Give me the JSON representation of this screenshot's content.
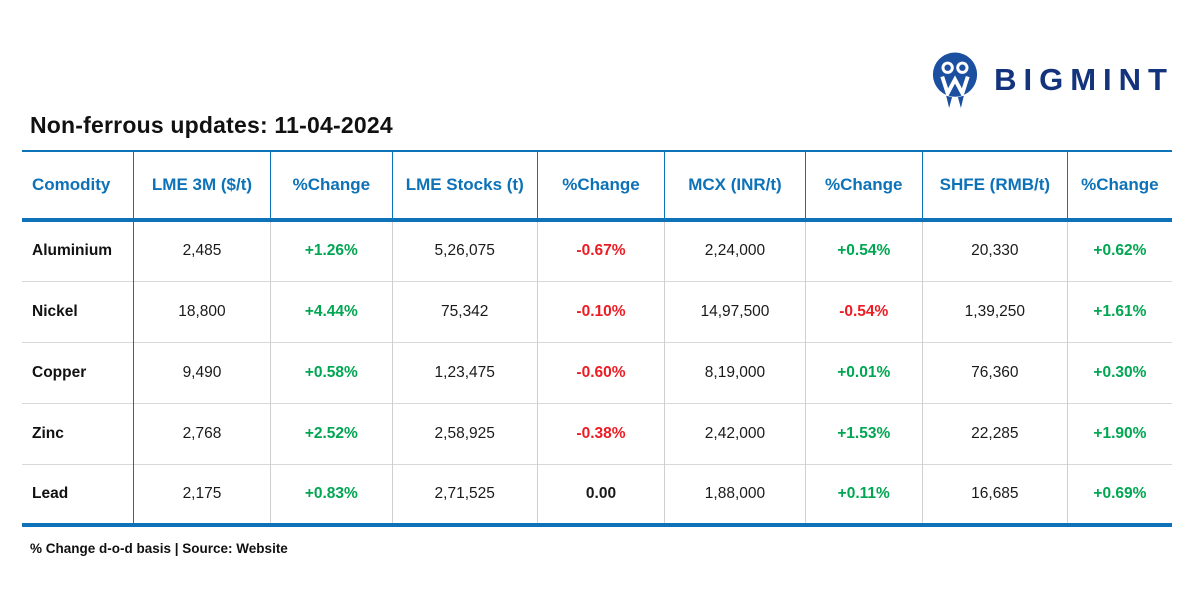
{
  "brand": {
    "name": "BIGMINT",
    "icon": "bigmint-m-people-icon",
    "icon_color": "#1B4FA0",
    "text_color": "#14337D"
  },
  "colors": {
    "header_blue": "#0D72B8",
    "positive_green": "#00A651",
    "negative_red": "#ED1C24"
  },
  "chart_data": {
    "type": "table",
    "title": "Non-ferrous updates: 11-04-2024",
    "footnote": "% Change d-o-d basis | Source: Website",
    "columns": [
      "Comodity",
      "LME 3M ($/t)",
      "%Change",
      "LME Stocks (t)",
      "%Change",
      "MCX (INR/t)",
      "%Change",
      "SHFE (RMB/t)",
      "%Change"
    ],
    "rows": [
      [
        "Aluminium",
        "2,485",
        "+1.26%",
        "5,26,075",
        "-0.67%",
        "2,24,000",
        "+0.54%",
        "20,330",
        "+0.62%"
      ],
      [
        "Nickel",
        "18,800",
        "+4.44%",
        "75,342",
        "-0.10%",
        "14,97,500",
        "-0.54%",
        "1,39,250",
        "+1.61%"
      ],
      [
        "Copper",
        "9,490",
        "+0.58%",
        "1,23,475",
        "-0.60%",
        "8,19,000",
        "+0.01%",
        "76,360",
        "+0.30%"
      ],
      [
        "Zinc",
        "2,768",
        "+2.52%",
        "2,58,925",
        "-0.38%",
        "2,42,000",
        "+1.53%",
        "22,285",
        "+1.90%"
      ],
      [
        "Lead",
        "2,175",
        "+0.83%",
        "2,71,525",
        "0.00",
        "1,88,000",
        "+0.11%",
        "16,685",
        "+0.69%"
      ]
    ]
  }
}
